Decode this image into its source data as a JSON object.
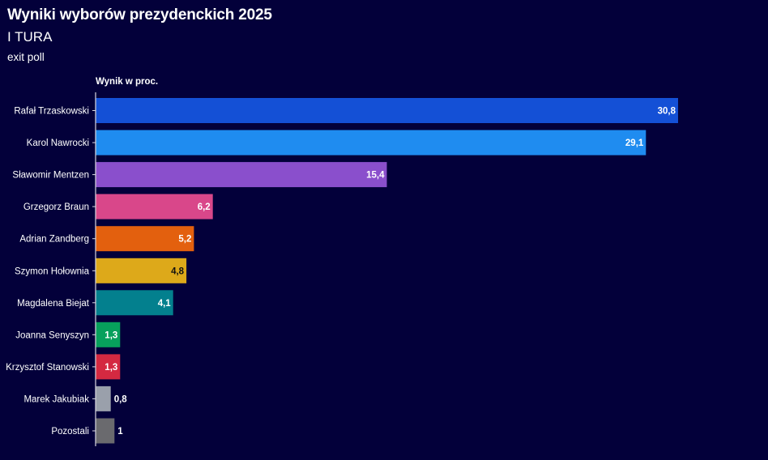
{
  "header": {
    "title": "Wyniki wyborów prezydenckich 2025",
    "subtitle": "I TURA",
    "note": "exit poll"
  },
  "chart_data": {
    "type": "bar",
    "orientation": "horizontal",
    "title": "Wyniki wyborów prezydenckich 2025",
    "subtitle": "I TURA",
    "xlabel": "Wynik w proc.",
    "ylabel": "",
    "xlim": [
      0,
      32
    ],
    "grid": false,
    "categories": [
      "Rafał Trzaskowski",
      "Karol Nawrocki",
      "Sławomir Mentzen",
      "Grzegorz Braun",
      "Adrian Zandberg",
      "Szymon Hołownia",
      "Magdalena Biejat",
      "Joanna Senyszyn",
      "Krzysztof Stanowski",
      "Marek Jakubiak",
      "Pozostali"
    ],
    "values": [
      30.8,
      29.1,
      15.4,
      6.2,
      5.2,
      4.8,
      4.1,
      1.3,
      1.3,
      0.8,
      1
    ],
    "value_labels": [
      "30,8",
      "29,1",
      "15,4",
      "6,2",
      "5,2",
      "4,8",
      "4,1",
      "1,3",
      "1,3",
      "0,8",
      "1"
    ],
    "colors": [
      "#1450d6",
      "#1f8cf0",
      "#8a4fcc",
      "#d9478a",
      "#e3600e",
      "#dda91a",
      "#03808e",
      "#07a05c",
      "#d42941",
      "#9aa0ab",
      "#6a6a6e"
    ],
    "label_colors": [
      "#ffffff",
      "#ffffff",
      "#ffffff",
      "#ffffff",
      "#ffffff",
      "#111111",
      "#ffffff",
      "#ffffff",
      "#ffffff",
      "#ffffff",
      "#ffffff"
    ]
  }
}
